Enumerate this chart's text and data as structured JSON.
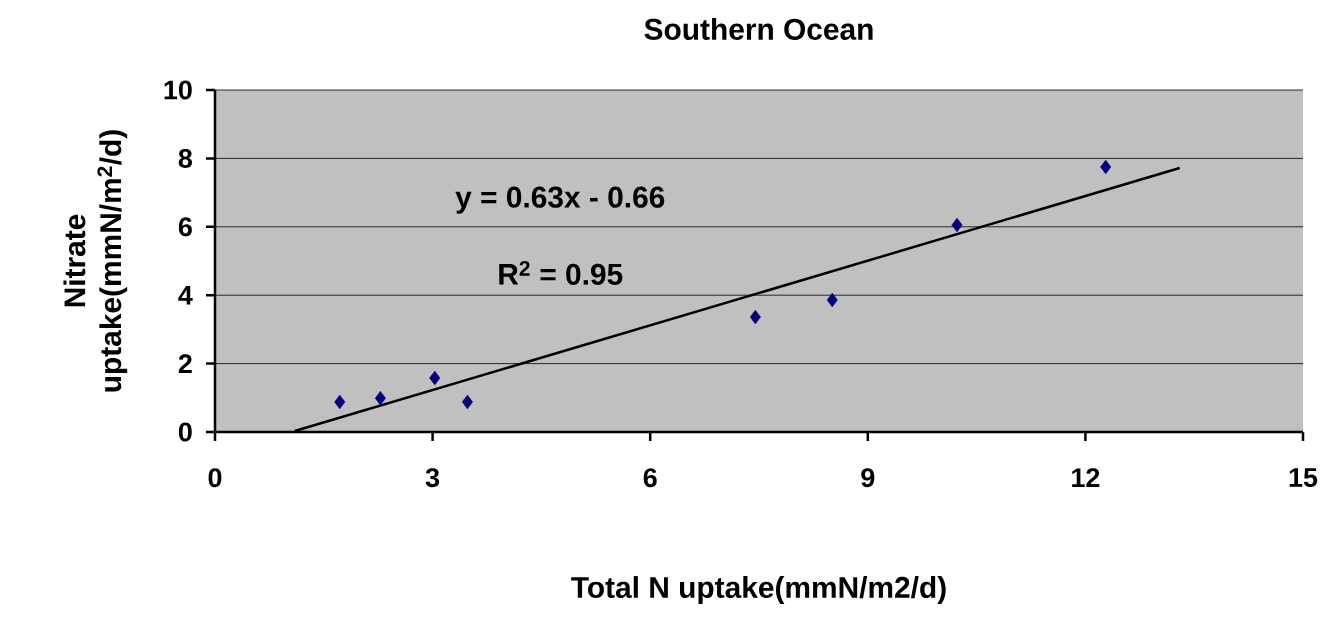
{
  "chart_data": {
    "type": "scatter",
    "title": "Southern Ocean",
    "xlabel": "Total N uptake(mmN/m2/d)",
    "ylabel": "Nitrate uptake(mmN/m$^{2}$/d)",
    "xlim": [
      0,
      15
    ],
    "xticks": [
      0,
      3,
      6,
      9,
      12,
      15
    ],
    "ylim": [
      0,
      10
    ],
    "yticks": [
      0,
      2,
      4,
      6,
      8,
      10
    ],
    "grid": "y",
    "series": [
      {
        "marker": "diamond",
        "color": "#000080",
        "x": [
          1.72,
          2.28,
          3.03,
          3.48,
          7.45,
          8.51,
          10.23,
          12.28
        ],
        "values": [
          0.88,
          0.99,
          1.58,
          0.88,
          3.36,
          3.86,
          6.05,
          7.75
        ]
      },
      {
        "type": "line",
        "color": "#000000",
        "x": [
          1.1,
          13.3
        ],
        "values": [
          0.03,
          7.72
        ]
      }
    ],
    "annotations": [
      "y = 0.63x - 0.66",
      "R$^{2}$ = 0.95"
    ]
  }
}
